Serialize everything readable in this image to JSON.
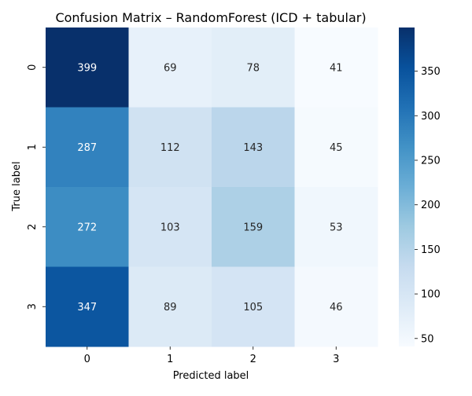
{
  "chart_data": {
    "type": "heatmap",
    "title": "Confusion Matrix – RandomForest (ICD + tabular)",
    "xlabel": "Predicted label",
    "ylabel": "True label",
    "x_categories": [
      "0",
      "1",
      "2",
      "3"
    ],
    "y_categories": [
      "0",
      "1",
      "2",
      "3"
    ],
    "values": [
      [
        399,
        69,
        78,
        41
      ],
      [
        287,
        112,
        143,
        45
      ],
      [
        272,
        103,
        159,
        53
      ],
      [
        347,
        89,
        105,
        46
      ]
    ],
    "colormap": "Blues",
    "colorbar": {
      "min": 41,
      "max": 399,
      "ticks": [
        50,
        100,
        150,
        200,
        250,
        300,
        350
      ]
    },
    "colors": {
      "low": "#f7fbff",
      "high": "#08306b"
    }
  }
}
